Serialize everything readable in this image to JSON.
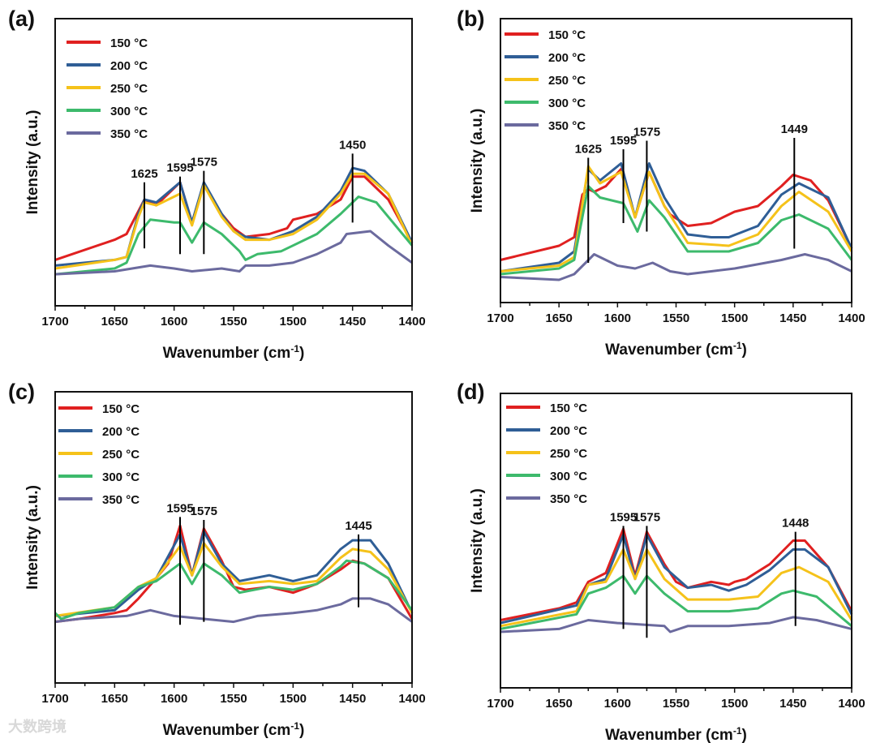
{
  "colors": {
    "150": "#e02020",
    "200": "#2f5e96",
    "250": "#f5c21a",
    "300": "#3dba6c",
    "350": "#6b6a9e"
  },
  "watermark": "大数跨境",
  "chart_data": [
    {
      "panel": "(a)",
      "type": "line",
      "xlabel": "Wavenumber (cm",
      "xlabel_sup": "-1",
      "xlabel_end": ")",
      "ylabel": "Intensity (a.u.)",
      "xlim": [
        1700,
        1400
      ],
      "ylim": [
        0,
        1
      ],
      "xticks": [
        1700,
        1650,
        1600,
        1550,
        1500,
        1450,
        1400
      ],
      "legend": "top-left",
      "series": [
        {
          "name": "150 °C",
          "key": "150",
          "x": [
            1700,
            1650,
            1640,
            1630,
            1625,
            1615,
            1595,
            1585,
            1575,
            1560,
            1550,
            1540,
            1520,
            1505,
            1500,
            1480,
            1460,
            1450,
            1440,
            1420,
            1400
          ],
          "y": [
            0.16,
            0.23,
            0.25,
            0.33,
            0.37,
            0.35,
            0.43,
            0.29,
            0.42,
            0.32,
            0.27,
            0.24,
            0.25,
            0.27,
            0.3,
            0.32,
            0.37,
            0.45,
            0.45,
            0.37,
            0.22
          ]
        },
        {
          "name": "200 °C",
          "key": "200",
          "x": [
            1700,
            1650,
            1640,
            1630,
            1625,
            1615,
            1595,
            1585,
            1575,
            1560,
            1550,
            1540,
            1520,
            1500,
            1480,
            1460,
            1450,
            1440,
            1420,
            1400
          ],
          "y": [
            0.14,
            0.16,
            0.17,
            0.32,
            0.37,
            0.36,
            0.43,
            0.29,
            0.43,
            0.32,
            0.26,
            0.24,
            0.23,
            0.26,
            0.31,
            0.4,
            0.48,
            0.47,
            0.39,
            0.22
          ]
        },
        {
          "name": "250 °C",
          "key": "250",
          "x": [
            1700,
            1650,
            1640,
            1630,
            1625,
            1615,
            1595,
            1585,
            1575,
            1560,
            1550,
            1540,
            1520,
            1500,
            1480,
            1460,
            1450,
            1440,
            1420,
            1400
          ],
          "y": [
            0.13,
            0.16,
            0.17,
            0.31,
            0.36,
            0.35,
            0.39,
            0.28,
            0.42,
            0.31,
            0.26,
            0.23,
            0.23,
            0.25,
            0.3,
            0.39,
            0.46,
            0.46,
            0.39,
            0.21
          ]
        },
        {
          "name": "300 °C",
          "key": "300",
          "x": [
            1700,
            1650,
            1640,
            1630,
            1620,
            1600,
            1595,
            1585,
            1575,
            1560,
            1545,
            1540,
            1530,
            1510,
            1500,
            1480,
            1460,
            1445,
            1430,
            1420,
            1400
          ],
          "y": [
            0.11,
            0.13,
            0.15,
            0.25,
            0.3,
            0.29,
            0.29,
            0.22,
            0.29,
            0.25,
            0.19,
            0.16,
            0.18,
            0.19,
            0.21,
            0.25,
            0.32,
            0.38,
            0.36,
            0.31,
            0.21
          ]
        },
        {
          "name": "350 °C",
          "key": "350",
          "x": [
            1700,
            1650,
            1620,
            1600,
            1585,
            1560,
            1545,
            1540,
            1520,
            1500,
            1480,
            1460,
            1455,
            1435,
            1420,
            1400
          ],
          "y": [
            0.11,
            0.12,
            0.14,
            0.13,
            0.12,
            0.13,
            0.12,
            0.14,
            0.14,
            0.15,
            0.18,
            0.22,
            0.25,
            0.26,
            0.21,
            0.15
          ]
        }
      ],
      "annotations": [
        {
          "label": "1625",
          "x": 1625,
          "y": [
            0.2,
            0.43
          ]
        },
        {
          "label": "1595",
          "x": 1595,
          "y": [
            0.18,
            0.45
          ]
        },
        {
          "label": "1575",
          "x": 1575,
          "y": [
            0.18,
            0.47
          ]
        },
        {
          "label": "1450",
          "x": 1450,
          "y": [
            0.29,
            0.53
          ]
        }
      ]
    },
    {
      "panel": "(b)",
      "type": "line",
      "xlabel": "Wavenumber (cm",
      "xlabel_sup": "-1",
      "xlabel_end": ")",
      "ylabel": "Intensity (a.u.)",
      "xlim": [
        1700,
        1400
      ],
      "ylim": [
        0,
        1
      ],
      "xticks": [
        1700,
        1650,
        1600,
        1550,
        1500,
        1450,
        1400
      ],
      "legend": "top-left",
      "series": [
        {
          "name": "150 °C",
          "key": "150",
          "x": [
            1700,
            1650,
            1637,
            1630,
            1625,
            1620,
            1610,
            1597,
            1585,
            1573,
            1560,
            1555,
            1540,
            1520,
            1500,
            1480,
            1460,
            1450,
            1435,
            1420,
            1400
          ],
          "y": [
            0.15,
            0.2,
            0.23,
            0.38,
            0.4,
            0.39,
            0.41,
            0.47,
            0.3,
            0.46,
            0.34,
            0.31,
            0.27,
            0.28,
            0.32,
            0.34,
            0.41,
            0.45,
            0.43,
            0.36,
            0.19
          ]
        },
        {
          "name": "200 °C",
          "key": "200",
          "x": [
            1700,
            1650,
            1637,
            1625,
            1615,
            1597,
            1585,
            1573,
            1560,
            1540,
            1520,
            1505,
            1480,
            1460,
            1445,
            1420,
            1400
          ],
          "y": [
            0.11,
            0.14,
            0.18,
            0.47,
            0.43,
            0.49,
            0.3,
            0.49,
            0.37,
            0.24,
            0.23,
            0.23,
            0.27,
            0.38,
            0.42,
            0.37,
            0.19
          ]
        },
        {
          "name": "250 °C",
          "key": "250",
          "x": [
            1700,
            1650,
            1637,
            1625,
            1615,
            1597,
            1585,
            1573,
            1560,
            1540,
            1505,
            1480,
            1460,
            1445,
            1420,
            1400
          ],
          "y": [
            0.11,
            0.13,
            0.16,
            0.48,
            0.42,
            0.46,
            0.3,
            0.46,
            0.34,
            0.21,
            0.2,
            0.24,
            0.34,
            0.39,
            0.32,
            0.18
          ]
        },
        {
          "name": "300 °C",
          "key": "300",
          "x": [
            1700,
            1650,
            1637,
            1625,
            1615,
            1595,
            1583,
            1573,
            1560,
            1540,
            1505,
            1480,
            1460,
            1445,
            1420,
            1400
          ],
          "y": [
            0.1,
            0.12,
            0.15,
            0.41,
            0.37,
            0.35,
            0.25,
            0.36,
            0.3,
            0.18,
            0.18,
            0.21,
            0.29,
            0.31,
            0.26,
            0.15
          ]
        },
        {
          "name": "350 °C",
          "key": "350",
          "x": [
            1700,
            1650,
            1637,
            1620,
            1600,
            1585,
            1570,
            1555,
            1540,
            1520,
            1500,
            1460,
            1440,
            1420,
            1400
          ],
          "y": [
            0.09,
            0.08,
            0.1,
            0.17,
            0.13,
            0.12,
            0.14,
            0.11,
            0.1,
            0.11,
            0.12,
            0.15,
            0.17,
            0.15,
            0.11
          ]
        }
      ],
      "annotations": [
        {
          "label": "1625",
          "x": 1625,
          "y": [
            0.14,
            0.51
          ]
        },
        {
          "label": "1595",
          "x": 1595,
          "y": [
            0.28,
            0.54
          ]
        },
        {
          "label": "1575",
          "x": 1575,
          "y": [
            0.25,
            0.57
          ]
        },
        {
          "label": "1449",
          "x": 1449,
          "y": [
            0.19,
            0.58
          ]
        }
      ]
    },
    {
      "panel": "(c)",
      "type": "line",
      "xlabel": "Wavenumber (cm",
      "xlabel_sup": "-1",
      "xlabel_end": ")",
      "ylabel": "Intensity (a.u.)",
      "xlim": [
        1700,
        1400
      ],
      "ylim": [
        0,
        1
      ],
      "xticks": [
        1700,
        1650,
        1600,
        1550,
        1500,
        1450,
        1400
      ],
      "legend": "top-left",
      "series": [
        {
          "name": "150 °C",
          "key": "150",
          "x": [
            1700,
            1680,
            1650,
            1640,
            1630,
            1615,
            1605,
            1595,
            1585,
            1575,
            1560,
            1550,
            1540,
            1520,
            1500,
            1480,
            1460,
            1450,
            1440,
            1420,
            1400
          ],
          "y": [
            0.21,
            0.22,
            0.24,
            0.25,
            0.29,
            0.36,
            0.41,
            0.54,
            0.37,
            0.53,
            0.42,
            0.33,
            0.32,
            0.33,
            0.31,
            0.34,
            0.39,
            0.42,
            0.41,
            0.36,
            0.22
          ]
        },
        {
          "name": "200 °C",
          "key": "200",
          "x": [
            1700,
            1650,
            1630,
            1615,
            1595,
            1585,
            1575,
            1560,
            1545,
            1520,
            1500,
            1480,
            1460,
            1450,
            1435,
            1420,
            1400
          ],
          "y": [
            0.23,
            0.25,
            0.32,
            0.36,
            0.51,
            0.37,
            0.52,
            0.41,
            0.35,
            0.37,
            0.35,
            0.37,
            0.46,
            0.49,
            0.49,
            0.41,
            0.24
          ]
        },
        {
          "name": "250 °C",
          "key": "250",
          "x": [
            1700,
            1650,
            1630,
            1615,
            1595,
            1585,
            1575,
            1560,
            1545,
            1520,
            1500,
            1480,
            1460,
            1450,
            1435,
            1420,
            1400
          ],
          "y": [
            0.23,
            0.26,
            0.33,
            0.36,
            0.47,
            0.37,
            0.48,
            0.4,
            0.34,
            0.35,
            0.34,
            0.35,
            0.43,
            0.46,
            0.45,
            0.39,
            0.24
          ]
        },
        {
          "name": "300 °C",
          "key": "300",
          "x": [
            1700,
            1695,
            1680,
            1650,
            1630,
            1615,
            1595,
            1585,
            1575,
            1560,
            1545,
            1520,
            1500,
            1480,
            1460,
            1455,
            1440,
            1420,
            1400
          ],
          "y": [
            0.24,
            0.22,
            0.24,
            0.26,
            0.33,
            0.35,
            0.41,
            0.34,
            0.41,
            0.37,
            0.31,
            0.33,
            0.32,
            0.34,
            0.4,
            0.42,
            0.41,
            0.36,
            0.25
          ]
        },
        {
          "name": "350 °C",
          "key": "350",
          "x": [
            1700,
            1680,
            1640,
            1620,
            1600,
            1575,
            1550,
            1530,
            1500,
            1480,
            1460,
            1450,
            1435,
            1420,
            1400
          ],
          "y": [
            0.21,
            0.22,
            0.23,
            0.25,
            0.23,
            0.22,
            0.21,
            0.23,
            0.24,
            0.25,
            0.27,
            0.29,
            0.29,
            0.27,
            0.21
          ]
        }
      ],
      "annotations": [
        {
          "label": "1595",
          "x": 1595,
          "y": [
            0.2,
            0.57
          ]
        },
        {
          "label": "1575",
          "x": 1575,
          "y": [
            0.21,
            0.56
          ]
        },
        {
          "label": "1445",
          "x": 1445,
          "y": [
            0.26,
            0.51
          ]
        }
      ]
    },
    {
      "panel": "(d)",
      "type": "line",
      "xlabel": "Wavenumber (cm",
      "xlabel_sup": "-1",
      "xlabel_end": ")",
      "ylabel": "Intensity (a.u.)",
      "xlim": [
        1700,
        1400
      ],
      "ylim": [
        0,
        1
      ],
      "xticks": [
        1700,
        1650,
        1600,
        1550,
        1500,
        1450,
        1400
      ],
      "legend": "top-left",
      "series": [
        {
          "name": "150 °C",
          "key": "150",
          "x": [
            1700,
            1650,
            1635,
            1625,
            1610,
            1595,
            1585,
            1575,
            1560,
            1550,
            1540,
            1520,
            1505,
            1500,
            1490,
            1470,
            1450,
            1440,
            1420,
            1400
          ],
          "y": [
            0.23,
            0.27,
            0.29,
            0.36,
            0.39,
            0.54,
            0.38,
            0.53,
            0.42,
            0.36,
            0.34,
            0.36,
            0.35,
            0.36,
            0.37,
            0.42,
            0.5,
            0.5,
            0.41,
            0.26
          ]
        },
        {
          "name": "200 °C",
          "key": "200",
          "x": [
            1700,
            1635,
            1625,
            1610,
            1595,
            1585,
            1575,
            1560,
            1540,
            1520,
            1505,
            1490,
            1470,
            1450,
            1440,
            1420,
            1400
          ],
          "y": [
            0.22,
            0.28,
            0.35,
            0.37,
            0.52,
            0.37,
            0.52,
            0.41,
            0.34,
            0.35,
            0.33,
            0.35,
            0.4,
            0.47,
            0.47,
            0.41,
            0.25
          ]
        },
        {
          "name": "250 °C",
          "key": "250",
          "x": [
            1700,
            1635,
            1625,
            1610,
            1595,
            1585,
            1575,
            1560,
            1540,
            1505,
            1480,
            1460,
            1445,
            1420,
            1400
          ],
          "y": [
            0.21,
            0.26,
            0.35,
            0.36,
            0.47,
            0.37,
            0.47,
            0.37,
            0.3,
            0.3,
            0.31,
            0.39,
            0.41,
            0.36,
            0.23
          ]
        },
        {
          "name": "300 °C",
          "key": "300",
          "x": [
            1700,
            1635,
            1625,
            1610,
            1595,
            1585,
            1575,
            1560,
            1540,
            1505,
            1480,
            1460,
            1450,
            1430,
            1400
          ],
          "y": [
            0.2,
            0.25,
            0.32,
            0.34,
            0.38,
            0.32,
            0.38,
            0.32,
            0.26,
            0.26,
            0.27,
            0.32,
            0.33,
            0.31,
            0.21
          ]
        },
        {
          "name": "350 °C",
          "key": "350",
          "x": [
            1700,
            1650,
            1625,
            1600,
            1560,
            1555,
            1540,
            1505,
            1470,
            1450,
            1430,
            1400
          ],
          "y": [
            0.19,
            0.2,
            0.23,
            0.22,
            0.21,
            0.19,
            0.21,
            0.21,
            0.22,
            0.24,
            0.23,
            0.2
          ]
        }
      ],
      "annotations": [
        {
          "label": "1595",
          "x": 1595,
          "y": [
            0.2,
            0.55
          ]
        },
        {
          "label": "1575",
          "x": 1575,
          "y": [
            0.17,
            0.55
          ]
        },
        {
          "label": "1448",
          "x": 1448,
          "y": [
            0.21,
            0.53
          ]
        }
      ]
    }
  ]
}
